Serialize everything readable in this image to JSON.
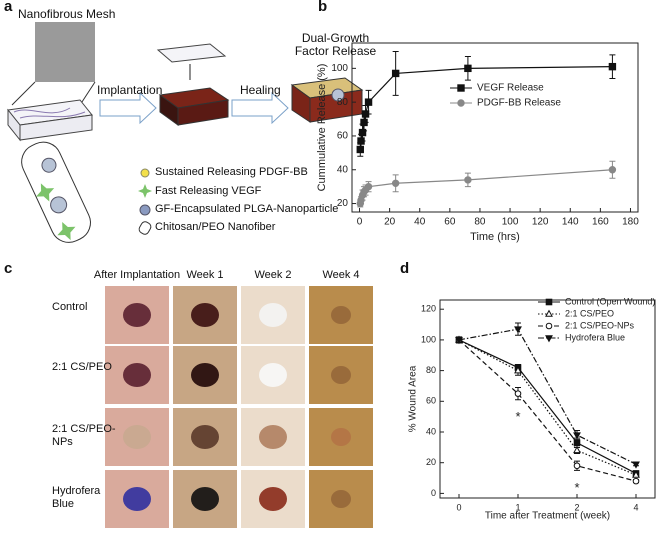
{
  "panel_labels": [
    "a",
    "b",
    "c",
    "d"
  ],
  "schematic": {
    "mesh_label": "Nanofibrous Mesh",
    "implantation": "Implantation",
    "healing": "Healing",
    "release": "Dual-Growth Factor Release",
    "legend": [
      "Sustained Releasing PDGF-BB",
      "Fast Releasing VEGF",
      "GF-Encapsulated PLGA-Nanoparticle",
      "Chitosan/PEO Nanofiber"
    ]
  },
  "photo_grid": {
    "columns": [
      "After Implantation",
      "Week 1",
      "Week 2",
      "Week 4"
    ],
    "rows": [
      "Control",
      "2:1 CS/PEO",
      "2:1 CS/PEO-NPs",
      "Hydrofera Blue"
    ]
  },
  "chart_data": [
    {
      "type": "line",
      "x_label": "Time (hrs)",
      "y_label": "Cummulative Release (%)",
      "x": [
        0.5,
        1,
        2,
        3,
        4,
        6,
        24,
        72,
        168
      ],
      "xlim": [
        -5,
        185
      ],
      "xticks": [
        0,
        20,
        40,
        60,
        80,
        100,
        120,
        140,
        160,
        180
      ],
      "ylim": [
        15,
        115
      ],
      "yticks": [
        20,
        40,
        60,
        80,
        100
      ],
      "series": [
        {
          "name": "VEGF Release",
          "color": "#111111",
          "marker": "square",
          "dash": "solid",
          "values": [
            52,
            57,
            62,
            68,
            73,
            80,
            97,
            100,
            101
          ],
          "errors": [
            4,
            4,
            5,
            5,
            5,
            7,
            13,
            7,
            7
          ]
        },
        {
          "name": "PDGF-BB Release",
          "color": "#888888",
          "marker": "circle",
          "dash": "solid",
          "values": [
            20,
            22,
            25,
            27,
            28,
            30,
            32,
            34,
            40
          ],
          "errors": [
            2,
            2,
            3,
            3,
            3,
            3,
            5,
            4,
            5
          ]
        }
      ]
    },
    {
      "type": "line",
      "x_label": "Time after Treatment (week)",
      "y_label": "% Wound Area",
      "categories": [
        "0",
        "1",
        "2",
        "4"
      ],
      "ylim": [
        -3,
        126
      ],
      "yticks": [
        0,
        20,
        40,
        60,
        80,
        100,
        120
      ],
      "annotations": [
        "*",
        "*"
      ],
      "series": [
        {
          "name": "Control (Open Wound)",
          "color": "#111111",
          "marker": "square",
          "dash": "solid",
          "values": [
            100,
            82,
            33,
            13
          ],
          "errors": [
            0,
            2,
            3,
            1
          ]
        },
        {
          "name": "2:1 CS/PEO",
          "color": "#111111",
          "marker": "triangle-up-open",
          "dash": "dotted",
          "values": [
            100,
            80,
            28,
            12
          ],
          "errors": [
            2,
            3,
            2,
            1
          ]
        },
        {
          "name": "2:1 CS/PEO-NPs",
          "color": "#111111",
          "marker": "circle-open",
          "dash": "dashed",
          "values": [
            100,
            65,
            18,
            8
          ],
          "errors": [
            0,
            4,
            3,
            1
          ]
        },
        {
          "name": "Hydrofera Blue",
          "color": "#111111",
          "marker": "triangle-down",
          "dash": "dashdot",
          "values": [
            100,
            107,
            38,
            19
          ],
          "errors": [
            0,
            4,
            3,
            1
          ]
        }
      ]
    }
  ]
}
